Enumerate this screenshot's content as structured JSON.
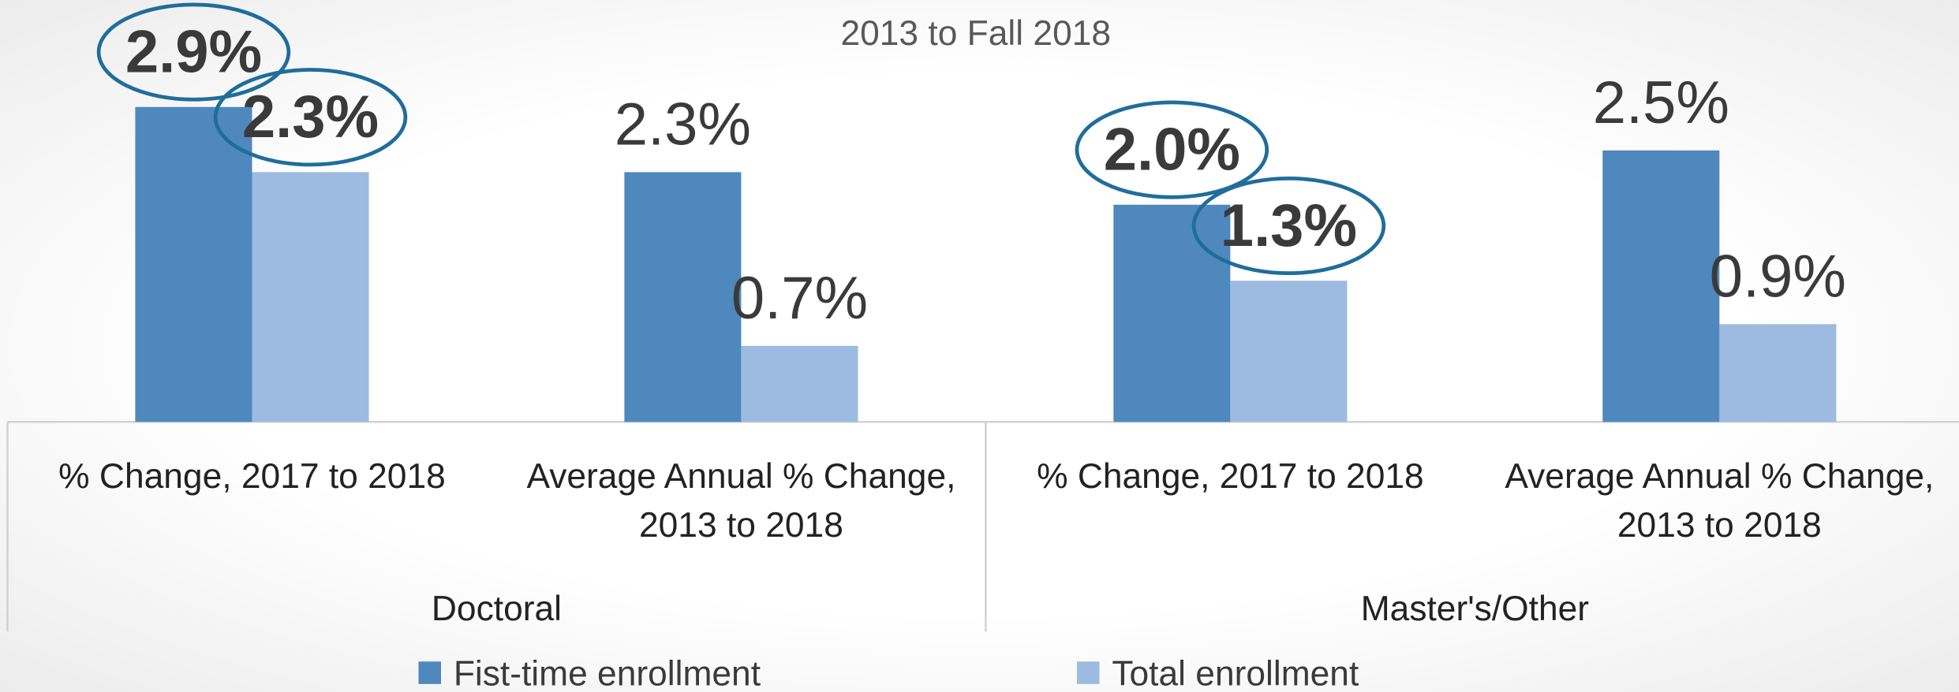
{
  "chart_data": {
    "type": "bar",
    "title": "2013 to Fall 2018",
    "categories": [
      "% Change, 2017 to 2018",
      "Average Annual % Change, 2013 to 2018",
      "% Change, 2017 to 2018",
      "Average Annual % Change, 2013 to 2018"
    ],
    "groups": [
      "Doctoral",
      "Master's/Other"
    ],
    "series": [
      {
        "name": "Fist-time enrollment",
        "color": "#4f88bd",
        "values": [
          2.9,
          2.3,
          2.0,
          2.5
        ],
        "value_labels": [
          "2.9%",
          "2.3%",
          "2.0%",
          "2.5%"
        ]
      },
      {
        "name": "Total enrollment",
        "color": "#9dbbe0",
        "values": [
          2.3,
          0.7,
          1.3,
          0.9
        ],
        "value_labels": [
          "2.3%",
          "0.7%",
          "1.3%",
          "0.9%"
        ]
      }
    ],
    "legend": "bottom"
  }
}
